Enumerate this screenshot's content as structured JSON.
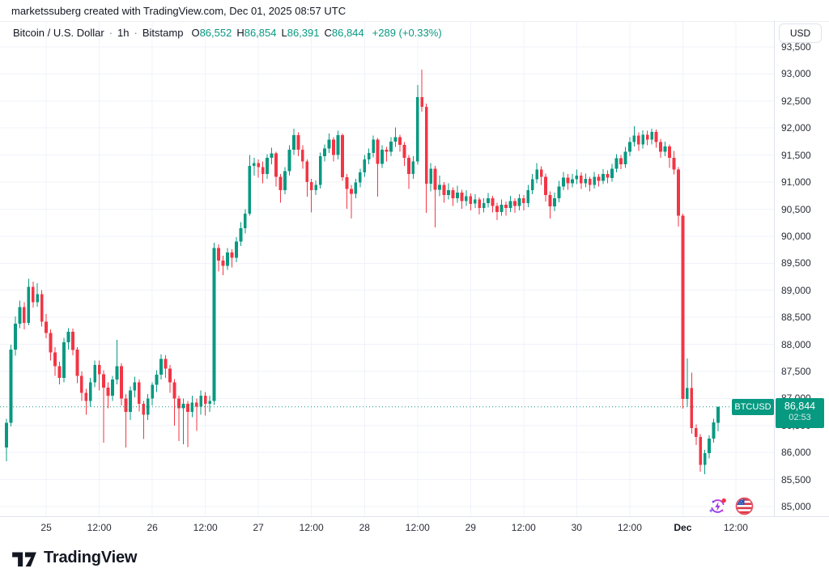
{
  "attribution": "marketssuberg created with TradingView.com, Dec 01, 2025 08:57 UTC",
  "legend": {
    "symbol": "Bitcoin / U.S. Dollar",
    "separator": "·",
    "interval": "1h",
    "exchange": "Bitstamp",
    "open_letter": "O",
    "open_value": "86,552",
    "high_letter": "H",
    "high_value": "86,854",
    "low_letter": "L",
    "low_value": "86,391",
    "close_letter": "C",
    "close_value": "86,844",
    "change": "+289 (+0.33%)"
  },
  "currency_button": "USD",
  "price_label": {
    "tag": "BTCUSD",
    "price": "86,844",
    "countdown": "02:53"
  },
  "footer": {
    "logo_text": "TradingView"
  },
  "icons": [
    {
      "name": "spark-events-icon"
    },
    {
      "name": "us-flag-economic-events-icon"
    }
  ],
  "colors": {
    "up": "#089981",
    "down": "#F23645",
    "grid": "#F0F3FA",
    "axis_text": "#2A2E39",
    "text": "#131722",
    "axis_border": "#E0E3EB",
    "price_line": "#089981"
  },
  "chart_data": {
    "type": "candlestick",
    "title": "Bitcoin / U.S. Dollar",
    "symbol": "BTCUSD",
    "interval": "1h",
    "exchange": "Bitstamp",
    "start_time": "Nov 24 15:00 UTC",
    "end_time": "Dec 01 08:00 UTC (current bar, closes in 02:53)",
    "current_bar": {
      "open": 86552,
      "high": 86854,
      "low": 86391,
      "close": 86844,
      "change": 289,
      "change_pct": 0.33
    },
    "price_line_value": 86844,
    "y_axis": {
      "min": 85000,
      "max": 93500,
      "step": 500,
      "unit": "USD"
    },
    "x_ticks": [
      {
        "label": "25",
        "hour": 9
      },
      {
        "label": "12:00",
        "hour": 21
      },
      {
        "label": "26",
        "hour": 33
      },
      {
        "label": "12:00",
        "hour": 45
      },
      {
        "label": "27",
        "hour": 57
      },
      {
        "label": "12:00",
        "hour": 69
      },
      {
        "label": "28",
        "hour": 81
      },
      {
        "label": "12:00",
        "hour": 93
      },
      {
        "label": "29",
        "hour": 105
      },
      {
        "label": "12:00",
        "hour": 117
      },
      {
        "label": "30",
        "hour": 129
      },
      {
        "label": "12:00",
        "hour": 141
      },
      {
        "label": "Dec",
        "hour": 153,
        "bold": true
      },
      {
        "label": "12:00",
        "hour": 165
      }
    ],
    "candles_format": [
      "open",
      "high",
      "low",
      "close"
    ],
    "candles": [
      [
        86090,
        86620,
        85840,
        86550
      ],
      [
        86550,
        87990,
        86480,
        87900
      ],
      [
        87900,
        88520,
        87790,
        88380
      ],
      [
        88380,
        88810,
        88300,
        88690
      ],
      [
        88690,
        88780,
        88280,
        88400
      ],
      [
        88400,
        89210,
        88350,
        89060
      ],
      [
        89060,
        89160,
        88680,
        88780
      ],
      [
        88780,
        89130,
        88700,
        88930
      ],
      [
        88930,
        89000,
        88330,
        88420
      ],
      [
        88420,
        88560,
        88110,
        88210
      ],
      [
        88210,
        88280,
        87700,
        87850
      ],
      [
        87850,
        87950,
        87420,
        87600
      ],
      [
        87600,
        87680,
        87260,
        87380
      ],
      [
        87380,
        88120,
        87300,
        88040
      ],
      [
        88040,
        88300,
        87900,
        88230
      ],
      [
        88230,
        88290,
        87800,
        87900
      ],
      [
        87900,
        87950,
        87280,
        87420
      ],
      [
        87420,
        87500,
        86950,
        87100
      ],
      [
        87100,
        87180,
        86700,
        86950
      ],
      [
        86950,
        87380,
        86850,
        87300
      ],
      [
        87300,
        87700,
        87210,
        87620
      ],
      [
        87620,
        87700,
        87150,
        87450
      ],
      [
        87450,
        87520,
        86180,
        87200
      ],
      [
        87200,
        87300,
        86820,
        87050
      ],
      [
        87050,
        87420,
        86950,
        87350
      ],
      [
        87350,
        88080,
        87260,
        87600
      ],
      [
        87600,
        87650,
        86870,
        87000
      ],
      [
        87000,
        87080,
        86090,
        86750
      ],
      [
        86750,
        87220,
        86600,
        87150
      ],
      [
        87150,
        87400,
        87020,
        87300
      ],
      [
        87300,
        87350,
        86760,
        86900
      ],
      [
        86900,
        86950,
        86250,
        86700
      ],
      [
        86700,
        87080,
        86600,
        87000
      ],
      [
        87000,
        87300,
        86870,
        87250
      ],
      [
        87250,
        87520,
        87120,
        87440
      ],
      [
        87440,
        87810,
        87350,
        87730
      ],
      [
        87730,
        87800,
        87380,
        87550
      ],
      [
        87550,
        87620,
        87100,
        87300
      ],
      [
        87300,
        87360,
        86500,
        87000
      ],
      [
        87000,
        87050,
        86210,
        86820
      ],
      [
        86820,
        87000,
        86150,
        86900
      ],
      [
        86900,
        86950,
        86100,
        86750
      ],
      [
        86750,
        87050,
        86650,
        86920
      ],
      [
        86920,
        87000,
        86400,
        86850
      ],
      [
        86850,
        87150,
        86700,
        87050
      ],
      [
        87050,
        87120,
        86680,
        86900
      ],
      [
        86900,
        87050,
        86750,
        86950
      ],
      [
        86950,
        89880,
        86880,
        89780
      ],
      [
        89780,
        89850,
        89350,
        89550
      ],
      [
        89550,
        89640,
        89280,
        89450
      ],
      [
        89450,
        89780,
        89380,
        89700
      ],
      [
        89700,
        89760,
        89420,
        89600
      ],
      [
        89600,
        89980,
        89520,
        89900
      ],
      [
        89900,
        90260,
        89820,
        90150
      ],
      [
        90150,
        90500,
        90050,
        90420
      ],
      [
        90420,
        91500,
        90380,
        91300
      ],
      [
        91300,
        91450,
        91120,
        91350
      ],
      [
        91350,
        91420,
        91080,
        91280
      ],
      [
        91280,
        91380,
        90980,
        91150
      ],
      [
        91150,
        91520,
        91060,
        91450
      ],
      [
        91450,
        91640,
        91330,
        91530
      ],
      [
        91530,
        91560,
        90920,
        91100
      ],
      [
        91100,
        91150,
        90620,
        90850
      ],
      [
        90850,
        91280,
        90780,
        91200
      ],
      [
        91200,
        91680,
        91120,
        91600
      ],
      [
        91600,
        91990,
        91500,
        91870
      ],
      [
        91870,
        91920,
        91480,
        91600
      ],
      [
        91600,
        91680,
        91250,
        91380
      ],
      [
        91380,
        91420,
        90730,
        91000
      ],
      [
        91000,
        91060,
        90440,
        90850
      ],
      [
        90850,
        91030,
        90760,
        90950
      ],
      [
        90950,
        91550,
        90880,
        91480
      ],
      [
        91480,
        91700,
        91380,
        91620
      ],
      [
        91620,
        91900,
        91540,
        91790
      ],
      [
        91790,
        91830,
        91380,
        91500
      ],
      [
        91500,
        91950,
        91420,
        91870
      ],
      [
        91870,
        91900,
        91020,
        91090
      ],
      [
        91090,
        91150,
        90510,
        90870
      ],
      [
        90870,
        90950,
        90330,
        90780
      ],
      [
        90780,
        91060,
        90700,
        90990
      ],
      [
        90990,
        91250,
        90900,
        91180
      ],
      [
        91180,
        91500,
        91100,
        91420
      ],
      [
        91420,
        91620,
        91330,
        91540
      ],
      [
        91540,
        91860,
        91460,
        91790
      ],
      [
        91790,
        91820,
        90730,
        91340
      ],
      [
        91340,
        91680,
        91260,
        91600
      ],
      [
        91600,
        91650,
        91380,
        91560
      ],
      [
        91560,
        91830,
        91480,
        91750
      ],
      [
        91750,
        92010,
        91650,
        91830
      ],
      [
        91830,
        91880,
        91560,
        91690
      ],
      [
        91690,
        91740,
        91300,
        91450
      ],
      [
        91450,
        91500,
        90870,
        91150
      ],
      [
        91150,
        91480,
        91060,
        91380
      ],
      [
        91380,
        92800,
        91320,
        92570
      ],
      [
        92570,
        93080,
        92300,
        92390
      ],
      [
        92390,
        92450,
        90430,
        90970
      ],
      [
        90970,
        91350,
        90830,
        91250
      ],
      [
        91250,
        91300,
        90160,
        90860
      ],
      [
        90860,
        91120,
        90740,
        90950
      ],
      [
        90950,
        91000,
        90620,
        90760
      ],
      [
        90760,
        90980,
        90680,
        90850
      ],
      [
        90850,
        90900,
        90560,
        90700
      ],
      [
        90700,
        90930,
        90620,
        90810
      ],
      [
        90810,
        90860,
        90510,
        90650
      ],
      [
        90650,
        90850,
        90560,
        90740
      ],
      [
        90740,
        90790,
        90480,
        90600
      ],
      [
        90600,
        90780,
        90520,
        90680
      ],
      [
        90680,
        90720,
        90400,
        90520
      ],
      [
        90520,
        90700,
        90440,
        90610
      ],
      [
        90610,
        90800,
        90530,
        90700
      ],
      [
        90700,
        90750,
        90440,
        90560
      ],
      [
        90560,
        90620,
        90300,
        90450
      ],
      [
        90450,
        90680,
        90380,
        90580
      ],
      [
        90580,
        90640,
        90380,
        90520
      ],
      [
        90520,
        90750,
        90450,
        90650
      ],
      [
        90650,
        90700,
        90430,
        90560
      ],
      [
        90560,
        90780,
        90480,
        90700
      ],
      [
        90700,
        90760,
        90480,
        90610
      ],
      [
        90610,
        90950,
        90540,
        90850
      ],
      [
        90850,
        91150,
        90780,
        91050
      ],
      [
        91050,
        91350,
        90980,
        91230
      ],
      [
        91230,
        91290,
        90950,
        91100
      ],
      [
        91100,
        91160,
        90640,
        90760
      ],
      [
        90760,
        90830,
        90330,
        90550
      ],
      [
        90550,
        90810,
        90460,
        90700
      ],
      [
        90700,
        91020,
        90630,
        90920
      ],
      [
        90920,
        91190,
        90850,
        91080
      ],
      [
        91080,
        91150,
        90860,
        90980
      ],
      [
        90980,
        91150,
        90900,
        91050
      ],
      [
        91050,
        91230,
        90960,
        91120
      ],
      [
        91120,
        91180,
        90870,
        90980
      ],
      [
        90980,
        91160,
        90900,
        91060
      ],
      [
        91060,
        91100,
        90830,
        90950
      ],
      [
        90950,
        91190,
        90880,
        91100
      ],
      [
        91100,
        91150,
        90920,
        91020
      ],
      [
        91020,
        91240,
        90960,
        91150
      ],
      [
        91150,
        91220,
        90980,
        91080
      ],
      [
        91080,
        91340,
        91010,
        91250
      ],
      [
        91250,
        91520,
        91180,
        91440
      ],
      [
        91440,
        91500,
        91240,
        91330
      ],
      [
        91330,
        91650,
        91260,
        91560
      ],
      [
        91560,
        91830,
        91480,
        91740
      ],
      [
        91740,
        92030,
        91660,
        91860
      ],
      [
        91860,
        91920,
        91580,
        91700
      ],
      [
        91700,
        91960,
        91620,
        91880
      ],
      [
        91880,
        91950,
        91680,
        91790
      ],
      [
        91790,
        91990,
        91700,
        91930
      ],
      [
        91930,
        91970,
        91640,
        91740
      ],
      [
        91740,
        91800,
        91450,
        91560
      ],
      [
        91560,
        91750,
        91480,
        91660
      ],
      [
        91660,
        91700,
        91260,
        91450
      ],
      [
        91450,
        91580,
        91140,
        91230
      ],
      [
        91230,
        91280,
        90180,
        90380
      ],
      [
        90380,
        90420,
        86810,
        86990
      ],
      [
        86990,
        87740,
        86850,
        87190
      ],
      [
        87190,
        87480,
        86350,
        86450
      ],
      [
        86450,
        86520,
        86140,
        86290
      ],
      [
        86290,
        86340,
        85640,
        85770
      ],
      [
        85770,
        86050,
        85600,
        85990
      ],
      [
        85990,
        86320,
        85890,
        86260
      ],
      [
        86260,
        86620,
        86180,
        86560
      ],
      [
        86552,
        86854,
        86391,
        86844
      ]
    ]
  }
}
